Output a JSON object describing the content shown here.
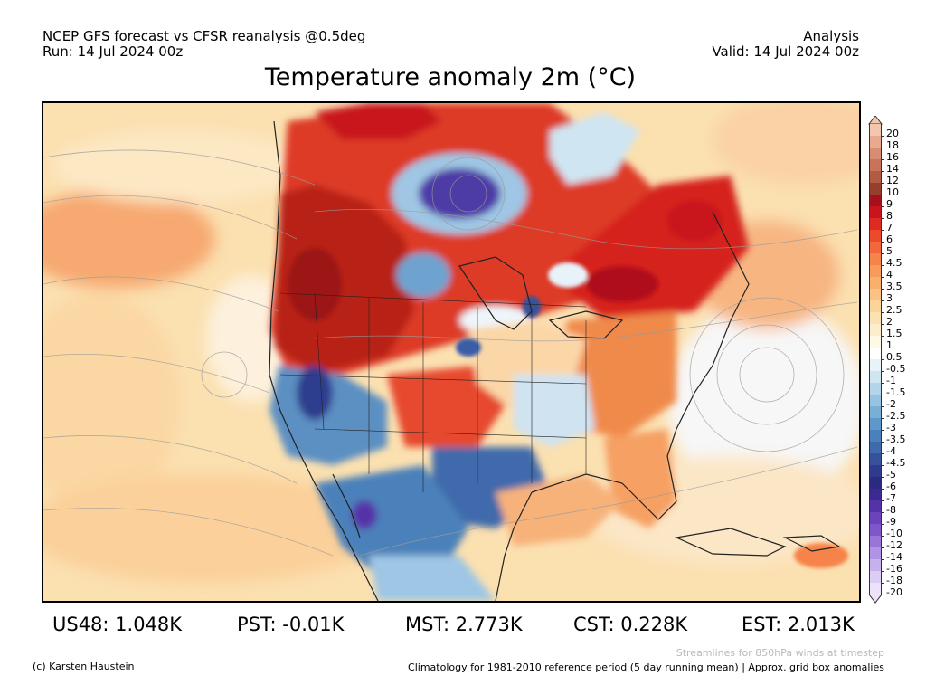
{
  "header": {
    "line1_left": "NCEP GFS forecast vs CFSR reanalysis @0.5deg",
    "line2_left": "Run: 14 Jul 2024 00z",
    "line1_right": "Analysis",
    "line2_right": "Valid: 14 Jul 2024 00z"
  },
  "title": "Temperature anomaly 2m (°C)",
  "map": {
    "region": "North America",
    "field": "2m temperature anomaly with 850hPa wind streamlines"
  },
  "stats": [
    {
      "label": "US48",
      "value": "1.048K",
      "text": "US48: 1.048K"
    },
    {
      "label": "PST",
      "value": "-0.01K",
      "text": "PST: -0.01K"
    },
    {
      "label": "MST",
      "value": "2.773K",
      "text": "MST: 2.773K"
    },
    {
      "label": "CST",
      "value": "0.228K",
      "text": "CST: 0.228K"
    },
    {
      "label": "EST",
      "value": "2.013K",
      "text": "EST: 2.013K"
    }
  ],
  "colorbar": {
    "labels": [
      "20",
      "18",
      "16",
      "14",
      "12",
      "10",
      "9",
      "8",
      "7",
      "6",
      "5",
      "4.5",
      "4",
      "3.5",
      "3",
      "2.5",
      "2",
      "1.5",
      "1",
      "0.5",
      "-0.5",
      "-1",
      "-1.5",
      "-2",
      "-2.5",
      "-3",
      "-3.5",
      "-4",
      "-4.5",
      "-5",
      "-6",
      "-7",
      "-8",
      "-9",
      "-10",
      "-12",
      "-14",
      "-16",
      "-18",
      "-20"
    ],
    "colors": [
      "#f3c7ae",
      "#e8a98e",
      "#d88d73",
      "#c8735a",
      "#b05b44",
      "#963f2c",
      "#a5101c",
      "#c8141e",
      "#df2a22",
      "#ec4a2b",
      "#f2683a",
      "#f6834a",
      "#f89a5a",
      "#f9b06d",
      "#fac383",
      "#fbd49a",
      "#fce2b3",
      "#fdeecb",
      "#fef8e4",
      "#ffffff",
      "#e7f2f9",
      "#cfe5f2",
      "#b3d5ea",
      "#96c3e0",
      "#7aafd5",
      "#5f98c8",
      "#4b81ba",
      "#3f6aab",
      "#36529c",
      "#2f3c8e",
      "#2a2a80",
      "#3a2a92",
      "#5433a8",
      "#6b44bc",
      "#8057cb",
      "#9b74d8",
      "#b193e3",
      "#c7b1ec",
      "#dccdf4",
      "#ece3fa"
    ]
  },
  "footer": {
    "copyright": "(c) Karsten Haustein",
    "streamlines_note": "Streamlines for 850hPa winds at timestep",
    "climatology_note": "Climatology for 1981-2010 reference period (5 day running mean) | Approx. grid box anomalies"
  }
}
